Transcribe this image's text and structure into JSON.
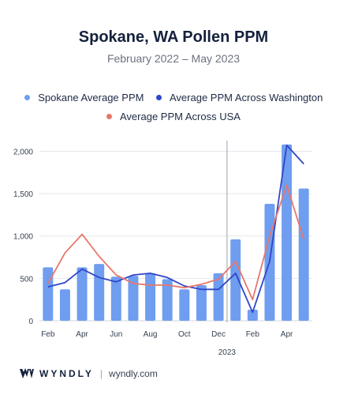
{
  "header": {
    "title": "Spokane, WA Pollen PPM",
    "subtitle": "February 2022 – May 2023"
  },
  "legend": {
    "items": [
      {
        "label": "Spokane Average PPM",
        "color": "#6f9df0"
      },
      {
        "label": "Average PPM Across Washington",
        "color": "#2f46c8"
      },
      {
        "label": "Average PPM Across USA",
        "color": "#e8776a"
      }
    ]
  },
  "footer": {
    "brand": "WYNDLY",
    "separator": "|",
    "url": "wyndly.com"
  },
  "chart_data": {
    "type": "bar",
    "categories": [
      "Feb",
      "Mar",
      "Apr",
      "May",
      "Jun",
      "Jul",
      "Aug",
      "Sep",
      "Oct",
      "Nov",
      "Dec",
      "Jan",
      "Feb",
      "Mar",
      "Apr",
      "May"
    ],
    "x_tick_labels": [
      "Feb",
      "",
      "Apr",
      "",
      "Jun",
      "",
      "Aug",
      "",
      "Oct",
      "",
      "Dec",
      "",
      "Feb",
      "",
      "Apr",
      ""
    ],
    "year_marker": {
      "label": "2023",
      "before_index": 11
    },
    "series": [
      {
        "name": "Spokane Average PPM",
        "type": "bar",
        "color": "#6f9df0",
        "values": [
          630,
          370,
          630,
          670,
          520,
          530,
          560,
          490,
          370,
          420,
          560,
          960,
          130,
          1380,
          2080,
          1560
        ]
      },
      {
        "name": "Average PPM Across Washington",
        "type": "line",
        "color": "#2f46c8",
        "values": [
          400,
          450,
          610,
          510,
          460,
          540,
          560,
          510,
          410,
          370,
          370,
          560,
          100,
          700,
          2070,
          1850
        ]
      },
      {
        "name": "Average PPM Across USA",
        "type": "line",
        "color": "#e8776a",
        "values": [
          440,
          800,
          1020,
          760,
          540,
          440,
          420,
          420,
          390,
          430,
          490,
          700,
          250,
          1000,
          1600,
          960
        ]
      }
    ],
    "yticks": [
      "0",
      "500",
      "1,000",
      "1,500",
      "2,000"
    ],
    "ylim": [
      0,
      2200
    ],
    "grid": true
  }
}
